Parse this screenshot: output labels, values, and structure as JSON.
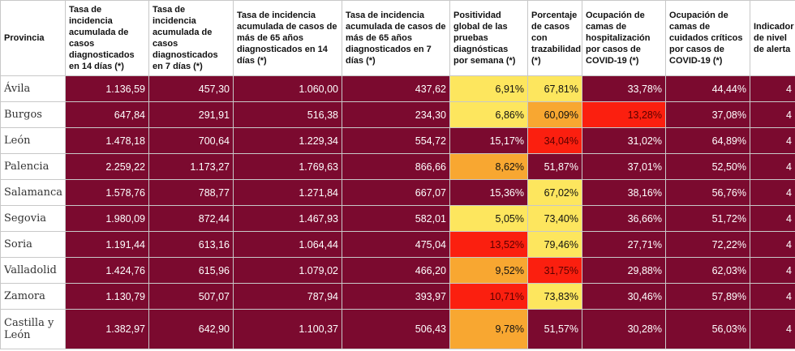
{
  "colors": {
    "maroon": "#7b0a2f",
    "yellow": "#fde65e",
    "orange": "#f8a731",
    "red": "#fb1f0f"
  },
  "headers": [
    {
      "label": "Provincia",
      "suffix": ""
    },
    {
      "label": "Tasa de incidencia acumulada de casos diagnosticados en 14 días",
      "suffix": "(*)"
    },
    {
      "label": "Tasa de incidencia acumulada de casos diagnosticados en 7 días",
      "suffix": "(*)"
    },
    {
      "label": "Tasa de incidencia acumulada de casos de más de 65 años diagnosticados en 14 días",
      "suffix": "(*)"
    },
    {
      "label": "Tasa de incidencia acumulada de casos de más de 65 años diagnosticados en 7 días",
      "suffix": "(*)"
    },
    {
      "label": "Positividad global de las pruebas diagnósticas por semana",
      "suffix": "(*)"
    },
    {
      "label": "Porcentaje de casos con trazabilidad",
      "suffix": "(*)"
    },
    {
      "label": "Ocupación de camas de hospitalización por casos de COVID-19",
      "suffix": "(*)"
    },
    {
      "label": "Ocupación de camas de cuidados críticos por casos de COVID-19",
      "suffix": "(*)"
    },
    {
      "label": "Indicador de nivel de alerta",
      "suffix": ""
    }
  ],
  "rows": [
    {
      "provincia": "Ávila",
      "values": [
        "1.136,59",
        "457,30",
        "1.060,00",
        "437,62",
        "6,91%",
        "67,81%",
        "33,78%",
        "44,44%",
        "4"
      ],
      "levels": [
        "maroon",
        "maroon",
        "maroon",
        "maroon",
        "yellow",
        "yellow",
        "maroon",
        "maroon",
        "maroon"
      ]
    },
    {
      "provincia": "Burgos",
      "values": [
        "647,84",
        "291,91",
        "516,38",
        "234,30",
        "6,86%",
        "60,09%",
        "13,28%",
        "37,08%",
        "4"
      ],
      "levels": [
        "maroon",
        "maroon",
        "maroon",
        "maroon",
        "yellow",
        "orange",
        "red",
        "maroon",
        "maroon"
      ]
    },
    {
      "provincia": "León",
      "values": [
        "1.478,18",
        "700,64",
        "1.229,34",
        "554,72",
        "15,17%",
        "34,04%",
        "31,02%",
        "64,89%",
        "4"
      ],
      "levels": [
        "maroon",
        "maroon",
        "maroon",
        "maroon",
        "maroon",
        "red",
        "maroon",
        "maroon",
        "maroon"
      ]
    },
    {
      "provincia": "Palencia",
      "values": [
        "2.259,22",
        "1.173,27",
        "1.769,63",
        "866,66",
        "8,62%",
        "51,87%",
        "37,01%",
        "52,50%",
        "4"
      ],
      "levels": [
        "maroon",
        "maroon",
        "maroon",
        "maroon",
        "orange",
        "maroon",
        "maroon",
        "maroon",
        "maroon"
      ]
    },
    {
      "provincia": "Salamanca",
      "values": [
        "1.578,76",
        "788,77",
        "1.271,84",
        "667,07",
        "15,36%",
        "67,02%",
        "38,16%",
        "56,76%",
        "4"
      ],
      "levels": [
        "maroon",
        "maroon",
        "maroon",
        "maroon",
        "maroon",
        "yellow",
        "maroon",
        "maroon",
        "maroon"
      ]
    },
    {
      "provincia": "Segovia",
      "values": [
        "1.980,09",
        "872,44",
        "1.467,93",
        "582,01",
        "5,05%",
        "73,40%",
        "36,66%",
        "51,72%",
        "4"
      ],
      "levels": [
        "maroon",
        "maroon",
        "maroon",
        "maroon",
        "yellow",
        "yellow",
        "maroon",
        "maroon",
        "maroon"
      ]
    },
    {
      "provincia": "Soria",
      "values": [
        "1.191,44",
        "613,16",
        "1.064,44",
        "475,04",
        "13,52%",
        "79,46%",
        "27,71%",
        "72,22%",
        "4"
      ],
      "levels": [
        "maroon",
        "maroon",
        "maroon",
        "maroon",
        "red",
        "yellow",
        "maroon",
        "maroon",
        "maroon"
      ]
    },
    {
      "provincia": "Valladolid",
      "values": [
        "1.424,76",
        "615,96",
        "1.079,02",
        "466,20",
        "9,52%",
        "31,75%",
        "29,88%",
        "62,03%",
        "4"
      ],
      "levels": [
        "maroon",
        "maroon",
        "maroon",
        "maroon",
        "orange",
        "red",
        "maroon",
        "maroon",
        "maroon"
      ]
    },
    {
      "provincia": "Zamora",
      "values": [
        "1.130,79",
        "507,07",
        "787,94",
        "393,97",
        "10,71%",
        "73,83%",
        "30,46%",
        "57,89%",
        "4"
      ],
      "levels": [
        "maroon",
        "maroon",
        "maroon",
        "maroon",
        "red",
        "yellow",
        "maroon",
        "maroon",
        "maroon"
      ]
    },
    {
      "provincia": "Castilla y León",
      "values": [
        "1.382,97",
        "642,90",
        "1.100,37",
        "506,43",
        "9,78%",
        "51,57%",
        "30,28%",
        "56,03%",
        "4"
      ],
      "levels": [
        "maroon",
        "maroon",
        "maroon",
        "maroon",
        "orange",
        "maroon",
        "maroon",
        "maroon",
        "maroon"
      ]
    }
  ]
}
